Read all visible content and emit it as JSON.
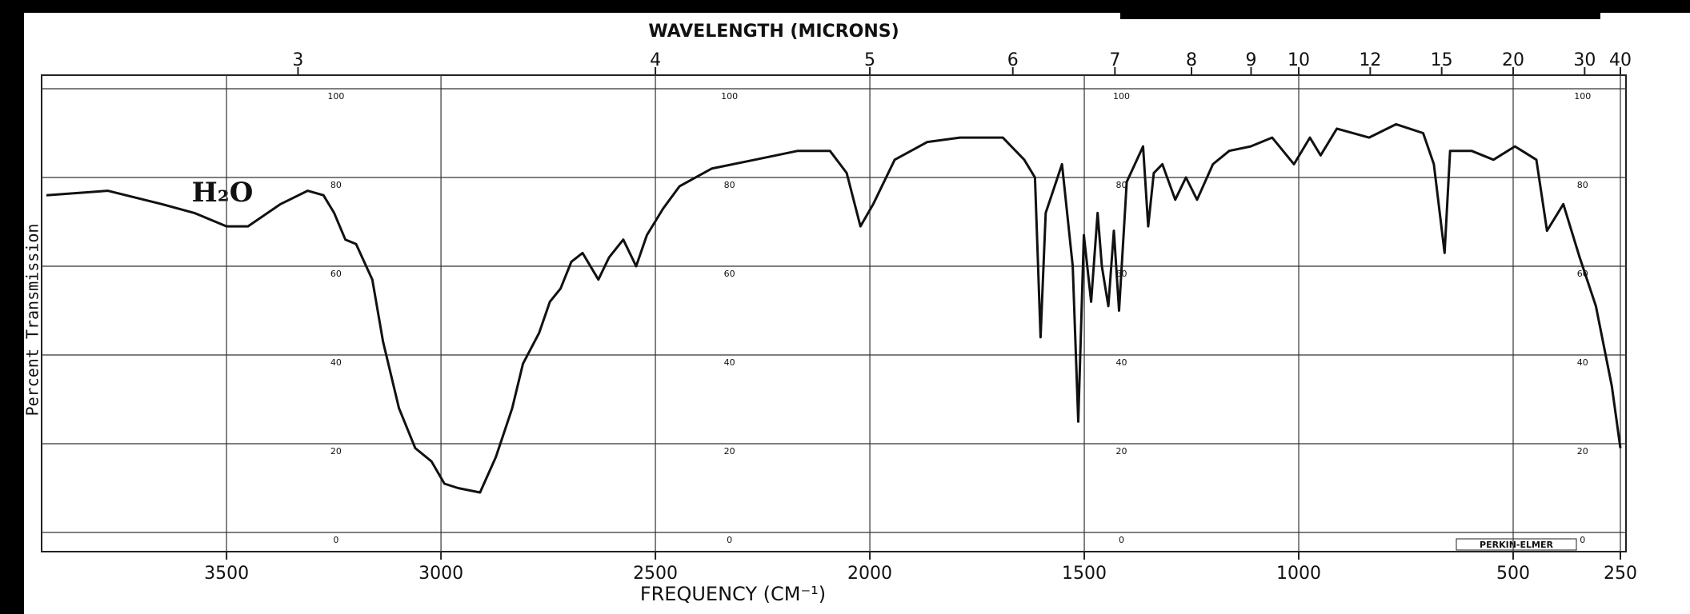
{
  "chart_data": {
    "type": "line",
    "title": "WAVELENGTH (MICRONS)",
    "xlabel": "FREQUENCY (CM⁻¹)",
    "ylabel": "Percent Transmission",
    "annotation": "H₂O",
    "brand": "PERKIN-ELMER",
    "color": "#111111",
    "grid": true,
    "xlim": [
      3920,
      250
    ],
    "ylim": [
      0,
      100
    ],
    "xticks": [
      3500,
      3000,
      2500,
      2000,
      1500,
      1000,
      500,
      250
    ],
    "yticks": [
      0,
      20,
      40,
      60,
      80,
      100
    ],
    "x2ticks": [
      3,
      4,
      5,
      6,
      7,
      8,
      9,
      10,
      12,
      15,
      20,
      30,
      40
    ],
    "x": [
      3920,
      3777,
      3651,
      3575,
      3500,
      3450,
      3374,
      3311,
      3274,
      3249,
      3223,
      3198,
      3160,
      3135,
      3098,
      3060,
      3022,
      2992,
      2960,
      2909,
      2872,
      2834,
      2809,
      2771,
      2746,
      2721,
      2696,
      2670,
      2633,
      2608,
      2575,
      2545,
      2520,
      2482,
      2444,
      2369,
      2268,
      2168,
      2093,
      2054,
      2022,
      1992,
      1942,
      1866,
      1790,
      1690,
      1640,
      1615,
      1602,
      1590,
      1552,
      1527,
      1514,
      1501,
      1484,
      1469,
      1459,
      1444,
      1431,
      1419,
      1401,
      1363,
      1351,
      1338,
      1318,
      1288,
      1263,
      1237,
      1200,
      1162,
      1112,
      1062,
      1011,
      974,
      949,
      911,
      836,
      773,
      710,
      685,
      660,
      647,
      597,
      546,
      496,
      446,
      421,
      383,
      345,
      307,
      270,
      250
    ],
    "values": [
      76,
      77,
      74,
      72,
      69,
      69,
      74,
      77,
      76,
      72,
      66,
      65,
      57,
      43,
      28,
      19,
      16,
      11,
      10,
      9,
      17,
      28,
      38,
      45,
      52,
      55,
      61,
      63,
      57,
      62,
      66,
      60,
      67,
      73,
      78,
      82,
      84,
      86,
      86,
      81,
      69,
      74,
      84,
      88,
      89,
      89,
      84,
      80,
      44,
      72,
      83,
      60,
      25,
      67,
      52,
      72,
      60,
      51,
      68,
      50,
      79,
      87,
      69,
      81,
      83,
      75,
      80,
      75,
      83,
      86,
      87,
      89,
      83,
      89,
      85,
      91,
      89,
      92,
      90,
      83,
      63,
      86,
      86,
      84,
      87,
      84,
      68,
      74,
      62,
      51,
      33,
      19
    ]
  }
}
